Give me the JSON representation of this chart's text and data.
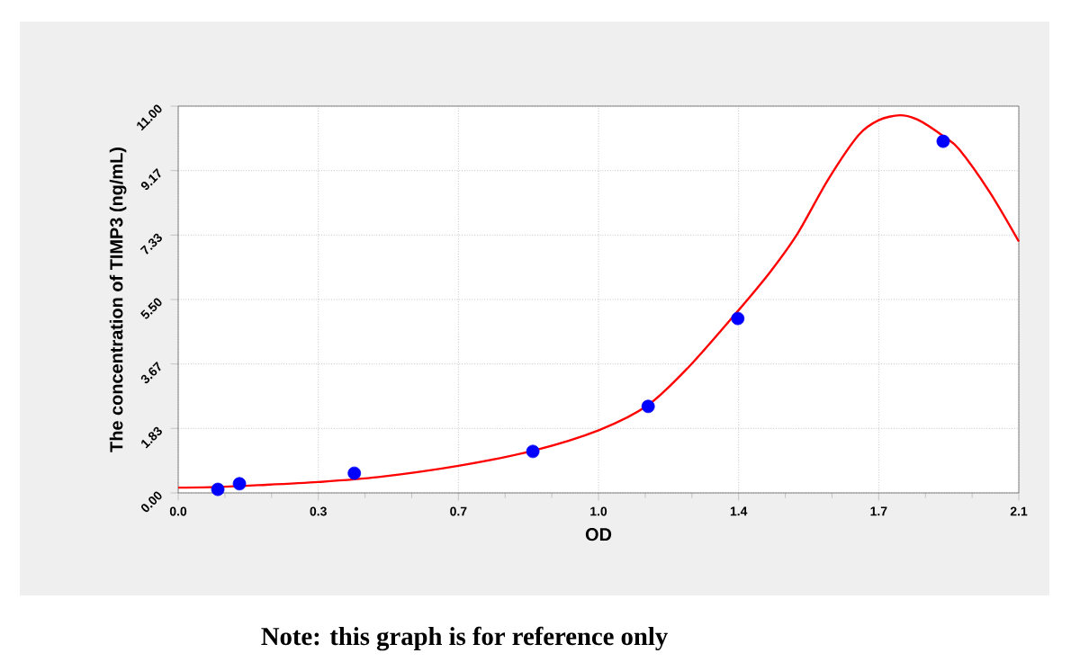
{
  "chart_data": {
    "type": "scatter",
    "xlabel": "OD",
    "ylabel": "The concentration of TIMP3 (ng/mL)",
    "annotations": [
      "**Note: this graph is for reference only**"
    ],
    "xlim": [
      0,
      2.1
    ],
    "ylim": [
      0,
      11
    ],
    "xticks": [
      {
        "value": 0,
        "label": "0.0"
      },
      {
        "value": 0.35,
        "label": "0.3"
      },
      {
        "value": 0.7,
        "label": "0.7"
      },
      {
        "value": 1.05,
        "label": "1.0"
      },
      {
        "value": 1.4,
        "label": "1.4"
      },
      {
        "value": 1.75,
        "label": "1.7"
      },
      {
        "value": 2.1,
        "label": "2.1"
      }
    ],
    "yticks": [
      {
        "value": 0,
        "label": "0.00"
      },
      {
        "value": 1.8333,
        "label": "1.83"
      },
      {
        "value": 3.6667,
        "label": "3.67"
      },
      {
        "value": 5.5,
        "label": "5.50"
      },
      {
        "value": 7.3333,
        "label": "7.33"
      },
      {
        "value": 9.1667,
        "label": "9.17"
      },
      {
        "value": 11,
        "label": "11.00"
      }
    ],
    "grid": true,
    "series": [
      {
        "type": "line",
        "color": "#ff0000",
        "marker": "none",
        "line_style": "solid",
        "x": [
          0,
          0.1,
          0.2,
          0.35,
          0.5,
          0.7,
          0.886,
          1.052,
          1.174,
          1.277,
          1.398,
          1.48,
          1.547,
          1.623,
          1.7,
          1.75,
          1.803,
          1.85,
          1.911,
          1.951,
          2.028,
          2.1
        ],
        "values": [
          0.15,
          0.17,
          0.22,
          0.31,
          0.45,
          0.77,
          1.2,
          1.79,
          2.5,
          3.6,
          5.17,
          6.3,
          7.37,
          8.9,
          10.18,
          10.6,
          10.74,
          10.6,
          10.15,
          9.77,
          8.54,
          7.15
        ]
      },
      {
        "color": "#0000ff",
        "marker": "circle",
        "x": [
          0.099,
          0.153,
          0.44,
          0.886,
          1.174,
          1.398,
          1.911
        ],
        "values": [
          0.1,
          0.26,
          0.56,
          1.18,
          2.46,
          4.96,
          10.0
        ]
      }
    ]
  }
}
